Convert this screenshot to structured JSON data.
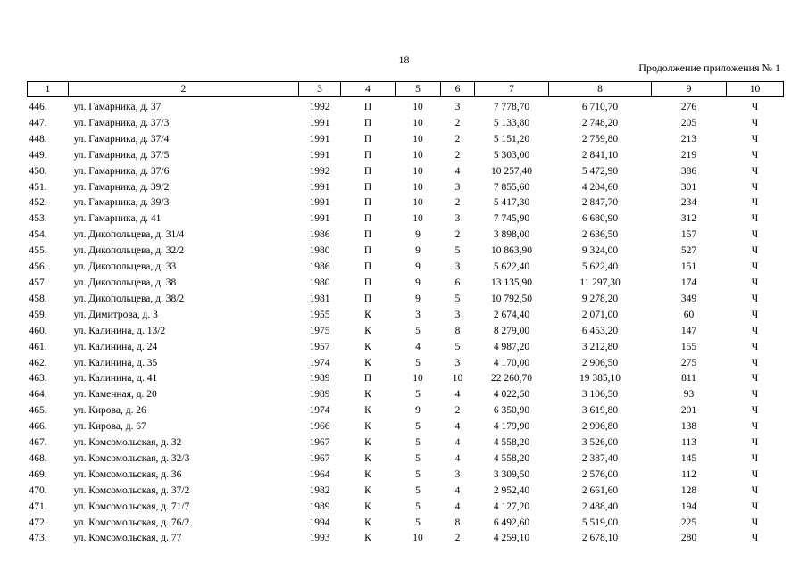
{
  "page_number": "18",
  "continuation": "Продолжение приложения № 1",
  "header": [
    "1",
    "2",
    "3",
    "4",
    "5",
    "6",
    "7",
    "8",
    "9",
    "10"
  ],
  "rows": [
    [
      "446.",
      "ул. Гамарника, д. 37",
      "1992",
      "П",
      "10",
      "3",
      "7 778,70",
      "6 710,70",
      "276",
      "Ч"
    ],
    [
      "447.",
      "ул. Гамарника, д. 37/3",
      "1991",
      "П",
      "10",
      "2",
      "5 133,80",
      "2 748,20",
      "205",
      "Ч"
    ],
    [
      "448.",
      "ул. Гамарника, д. 37/4",
      "1991",
      "П",
      "10",
      "2",
      "5 151,20",
      "2 759,80",
      "213",
      "Ч"
    ],
    [
      "449.",
      "ул. Гамарника, д. 37/5",
      "1991",
      "П",
      "10",
      "2",
      "5 303,00",
      "2 841,10",
      "219",
      "Ч"
    ],
    [
      "450.",
      "ул. Гамарника, д. 37/6",
      "1992",
      "П",
      "10",
      "4",
      "10 257,40",
      "5 472,90",
      "386",
      "Ч"
    ],
    [
      "451.",
      "ул. Гамарника, д. 39/2",
      "1991",
      "П",
      "10",
      "3",
      "7 855,60",
      "4 204,60",
      "301",
      "Ч"
    ],
    [
      "452.",
      "ул. Гамарника, д. 39/3",
      "1991",
      "П",
      "10",
      "2",
      "5 417,30",
      "2 847,70",
      "234",
      "Ч"
    ],
    [
      "453.",
      "ул. Гамарника, д. 41",
      "1991",
      "П",
      "10",
      "3",
      "7 745,90",
      "6 680,90",
      "312",
      "Ч"
    ],
    [
      "454.",
      "ул. Дикопольцева, д. 31/4",
      "1986",
      "П",
      "9",
      "2",
      "3 898,00",
      "2 636,50",
      "157",
      "Ч"
    ],
    [
      "455.",
      "ул. Дикопольцева, д. 32/2",
      "1980",
      "П",
      "9",
      "5",
      "10 863,90",
      "9 324,00",
      "527",
      "Ч"
    ],
    [
      "456.",
      "ул. Дикопольцева, д. 33",
      "1986",
      "П",
      "9",
      "3",
      "5 622,40",
      "5 622,40",
      "151",
      "Ч"
    ],
    [
      "457.",
      "ул. Дикопольцева, д. 38",
      "1980",
      "П",
      "9",
      "6",
      "13 135,90",
      "11 297,30",
      "174",
      "Ч"
    ],
    [
      "458.",
      "ул. Дикопольцева, д. 38/2",
      "1981",
      "П",
      "9",
      "5",
      "10 792,50",
      "9 278,20",
      "349",
      "Ч"
    ],
    [
      "459.",
      "ул. Димитрова, д. 3",
      "1955",
      "К",
      "3",
      "3",
      "2 674,40",
      "2 071,00",
      "60",
      "Ч"
    ],
    [
      "460.",
      "ул. Калинина, д. 13/2",
      "1975",
      "К",
      "5",
      "8",
      "8 279,00",
      "6 453,20",
      "147",
      "Ч"
    ],
    [
      "461.",
      "ул. Калинина, д. 24",
      "1957",
      "К",
      "4",
      "5",
      "4 987,20",
      "3 212,80",
      "155",
      "Ч"
    ],
    [
      "462.",
      "ул. Калинина, д. 35",
      "1974",
      "К",
      "5",
      "3",
      "4 170,00",
      "2 906,50",
      "275",
      "Ч"
    ],
    [
      "463.",
      "ул. Калинина, д. 41",
      "1989",
      "П",
      "10",
      "10",
      "22 260,70",
      "19 385,10",
      "811",
      "Ч"
    ],
    [
      "464.",
      "ул. Каменная, д. 20",
      "1989",
      "К",
      "5",
      "4",
      "4 022,50",
      "3 106,50",
      "93",
      "Ч"
    ],
    [
      "465.",
      "ул. Кирова, д. 26",
      "1974",
      "К",
      "9",
      "2",
      "6 350,90",
      "3 619,80",
      "201",
      "Ч"
    ],
    [
      "466.",
      "ул. Кирова, д. 67",
      "1966",
      "К",
      "5",
      "4",
      "4 179,90",
      "2 996,80",
      "138",
      "Ч"
    ],
    [
      "467.",
      "ул. Комсомольская, д. 32",
      "1967",
      "К",
      "5",
      "4",
      "4 558,20",
      "3 526,00",
      "113",
      "Ч"
    ],
    [
      "468.",
      "ул. Комсомольская, д. 32/3",
      "1967",
      "К",
      "5",
      "4",
      "4 558,20",
      "2 387,40",
      "145",
      "Ч"
    ],
    [
      "469.",
      "ул. Комсомольская, д. 36",
      "1964",
      "К",
      "5",
      "3",
      "3 309,50",
      "2 576,00",
      "112",
      "Ч"
    ],
    [
      "470.",
      "ул. Комсомольская, д. 37/2",
      "1982",
      "К",
      "5",
      "4",
      "2 952,40",
      "2 661,60",
      "128",
      "Ч"
    ],
    [
      "471.",
      "ул. Комсомольская, д. 71/7",
      "1989",
      "К",
      "5",
      "4",
      "4 127,20",
      "2 488,40",
      "194",
      "Ч"
    ],
    [
      "472.",
      "ул. Комсомольская, д. 76/2",
      "1994",
      "К",
      "5",
      "8",
      "6 492,60",
      "5 519,00",
      "225",
      "Ч"
    ],
    [
      "473.",
      "ул. Комсомольская, д. 77",
      "1993",
      "К",
      "10",
      "2",
      "4 259,10",
      "2 678,10",
      "280",
      "Ч"
    ]
  ]
}
